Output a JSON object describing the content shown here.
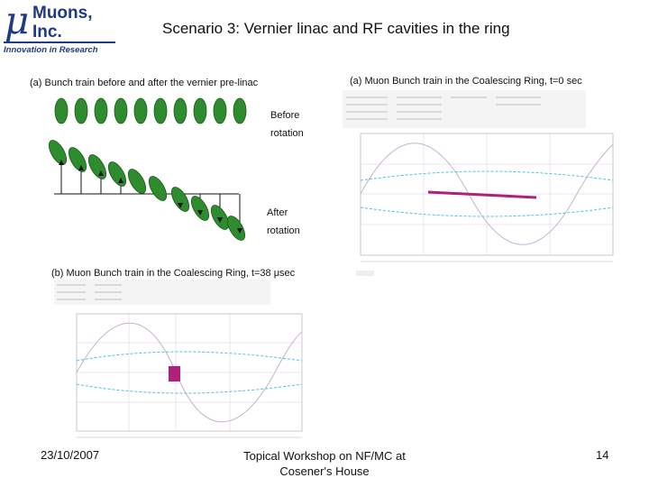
{
  "logo": {
    "mu": "μ",
    "name_line1": "Muons,",
    "name_line2": "Inc.",
    "tagline": "Innovation in Research"
  },
  "title": "Scenario 3: Vernier linac and RF cavities in the ring",
  "panel_a_left": {
    "caption": "(a) Bunch train before and after the vernier pre-linac",
    "before_label_1": "Before",
    "before_label_2": "rotation",
    "after_label_1": "After",
    "after_label_2": "rotation"
  },
  "panel_a_right": {
    "caption": "(a) Muon Bunch train in the Coalescing Ring, t=0 sec"
  },
  "panel_b": {
    "caption": "(b) Muon Bunch train in the Coalescing Ring, t=38 μsec"
  },
  "footer": {
    "date": "23/10/2007",
    "venue_line1": "Topical Workshop on NF/MC at",
    "venue_line2": "Cosener's House",
    "page": "14"
  },
  "colors": {
    "brand": "#1f3a86",
    "bunch_fill": "#2e8b2e",
    "sine_cyan": "#4fc3d9",
    "bunch_magenta": "#b0207a"
  }
}
